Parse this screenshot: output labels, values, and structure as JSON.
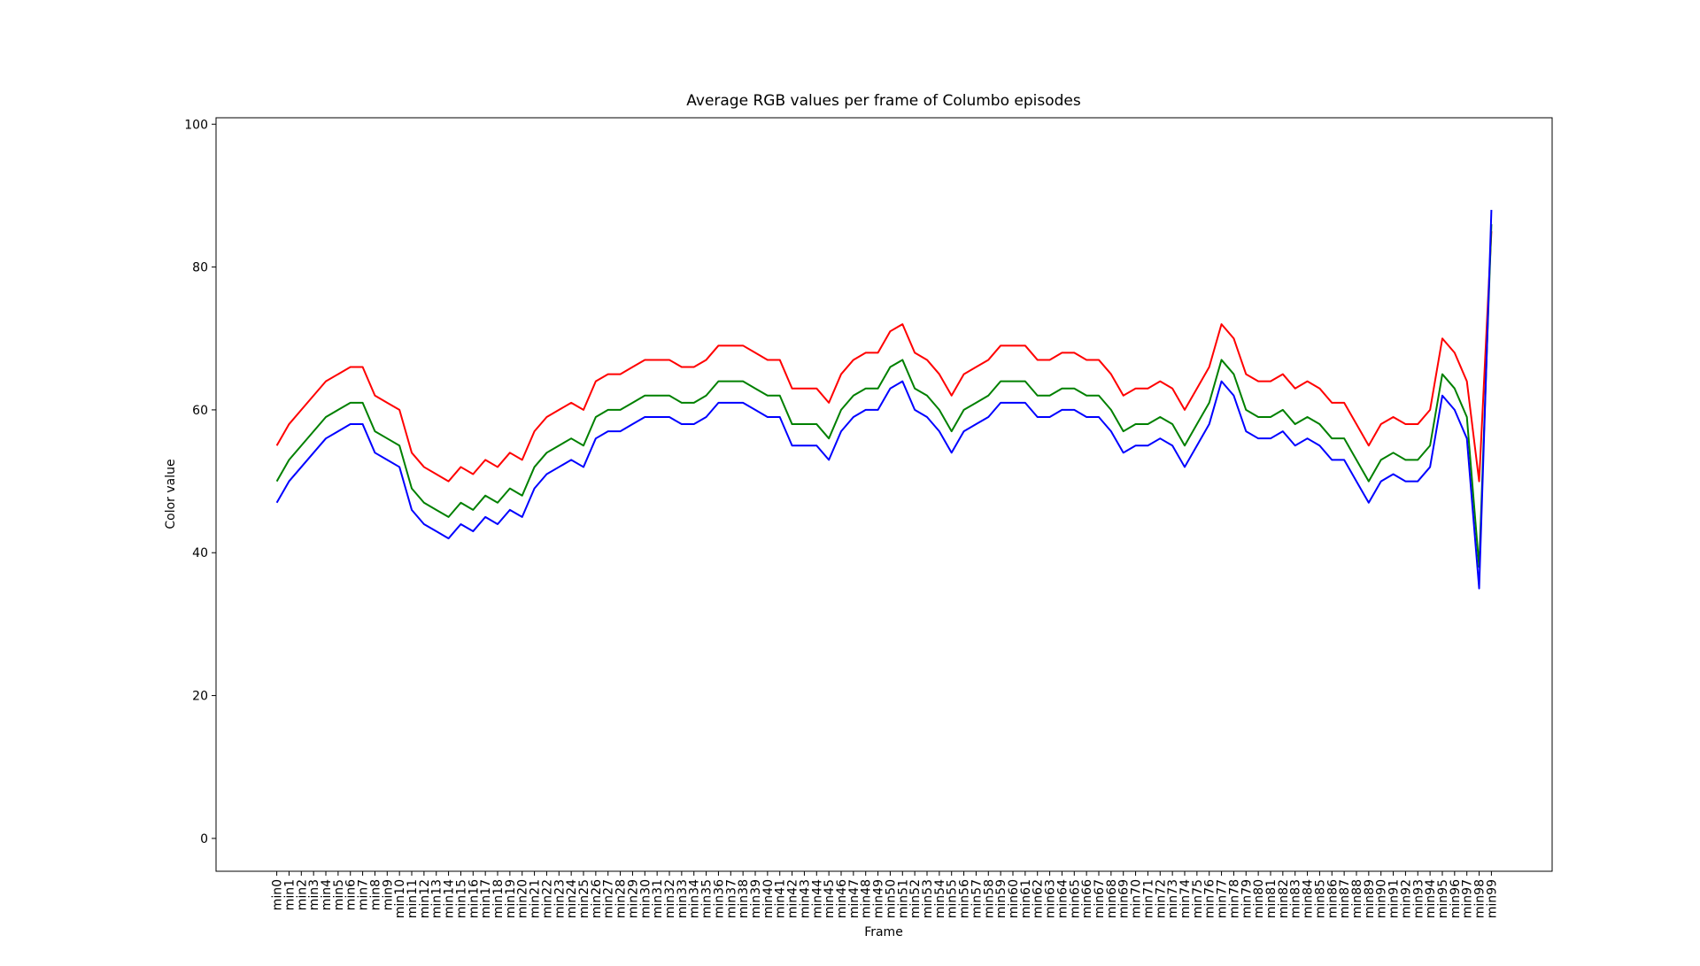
{
  "chart_data": {
    "type": "line",
    "title": "Average RGB values per frame of Columbo episodes",
    "x_label": "Frame",
    "y_label": "Color value",
    "categories": [
      "min0",
      "min1",
      "min2",
      "min3",
      "min4",
      "min5",
      "min6",
      "min7",
      "min8",
      "min9",
      "min10",
      "min11",
      "min12",
      "min13",
      "min14",
      "min15",
      "min16",
      "min17",
      "min18",
      "min19",
      "min20",
      "min21",
      "min22",
      "min23",
      "min24",
      "min25",
      "min26",
      "min27",
      "min28",
      "min29",
      "min30",
      "min31",
      "min32",
      "min33",
      "min34",
      "min35",
      "min36",
      "min37",
      "min38",
      "min39",
      "min40",
      "min41",
      "min42",
      "min43",
      "min44",
      "min45",
      "min46",
      "min47",
      "min48",
      "min49",
      "min50",
      "min51",
      "min52",
      "min53",
      "min54",
      "min55",
      "min56",
      "min57",
      "min58",
      "min59",
      "min60",
      "min61",
      "min62",
      "min63",
      "min64",
      "min65",
      "min66",
      "min67",
      "min68",
      "min69",
      "min70",
      "min71",
      "min72",
      "min73",
      "min74",
      "min75",
      "min76",
      "min77",
      "min78",
      "min79",
      "min80",
      "min81",
      "min82",
      "min83",
      "min84",
      "min85",
      "min86",
      "min87",
      "min88",
      "min89",
      "min90",
      "min91",
      "min92",
      "min93",
      "min94",
      "min95",
      "min96",
      "min97",
      "min98",
      "min99"
    ],
    "series": [
      {
        "color": "#ff0000",
        "values": [
          55,
          58,
          60,
          62,
          64,
          65,
          66,
          66,
          62,
          61,
          60,
          54,
          52,
          51,
          50,
          52,
          51,
          53,
          52,
          54,
          53,
          57,
          59,
          60,
          61,
          60,
          64,
          65,
          65,
          66,
          67,
          67,
          67,
          66,
          66,
          67,
          69,
          69,
          69,
          68,
          67,
          67,
          63,
          63,
          63,
          61,
          65,
          67,
          68,
          68,
          71,
          72,
          68,
          67,
          65,
          62,
          65,
          66,
          67,
          69,
          69,
          69,
          67,
          67,
          68,
          68,
          67,
          67,
          65,
          62,
          63,
          63,
          64,
          63,
          60,
          63,
          66,
          72,
          70,
          65,
          64,
          64,
          65,
          63,
          64,
          63,
          61,
          61,
          58,
          55,
          58,
          59,
          58,
          58,
          60,
          70,
          68,
          64,
          50,
          85
        ]
      },
      {
        "color": "#008000",
        "values": [
          50,
          53,
          55,
          57,
          59,
          60,
          61,
          61,
          57,
          56,
          55,
          49,
          47,
          46,
          45,
          47,
          46,
          48,
          47,
          49,
          48,
          52,
          54,
          55,
          56,
          55,
          59,
          60,
          60,
          61,
          62,
          62,
          62,
          61,
          61,
          62,
          64,
          64,
          64,
          63,
          62,
          62,
          58,
          58,
          58,
          56,
          60,
          62,
          63,
          63,
          66,
          67,
          63,
          62,
          60,
          57,
          60,
          61,
          62,
          64,
          64,
          64,
          62,
          62,
          63,
          63,
          62,
          62,
          60,
          57,
          58,
          58,
          59,
          58,
          55,
          58,
          61,
          67,
          65,
          60,
          59,
          59,
          60,
          58,
          59,
          58,
          56,
          56,
          53,
          50,
          53,
          54,
          53,
          53,
          55,
          65,
          63,
          59,
          38,
          86
        ]
      },
      {
        "color": "#0000ff",
        "values": [
          47,
          50,
          52,
          54,
          56,
          57,
          58,
          58,
          54,
          53,
          52,
          46,
          44,
          43,
          42,
          44,
          43,
          45,
          44,
          46,
          45,
          49,
          51,
          52,
          53,
          52,
          56,
          57,
          57,
          58,
          59,
          59,
          59,
          58,
          58,
          59,
          61,
          61,
          61,
          60,
          59,
          59,
          55,
          55,
          55,
          53,
          57,
          59,
          60,
          60,
          63,
          64,
          60,
          59,
          57,
          54,
          57,
          58,
          59,
          61,
          61,
          61,
          59,
          59,
          60,
          60,
          59,
          59,
          57,
          54,
          55,
          55,
          56,
          55,
          52,
          55,
          58,
          64,
          62,
          57,
          56,
          56,
          57,
          55,
          56,
          55,
          53,
          53,
          50,
          47,
          50,
          51,
          50,
          50,
          52,
          62,
          60,
          56,
          35,
          88
        ]
      }
    ],
    "ylim": [
      -4.6,
      100.9
    ],
    "yticks": [
      0,
      20,
      40,
      60,
      80,
      100
    ]
  }
}
